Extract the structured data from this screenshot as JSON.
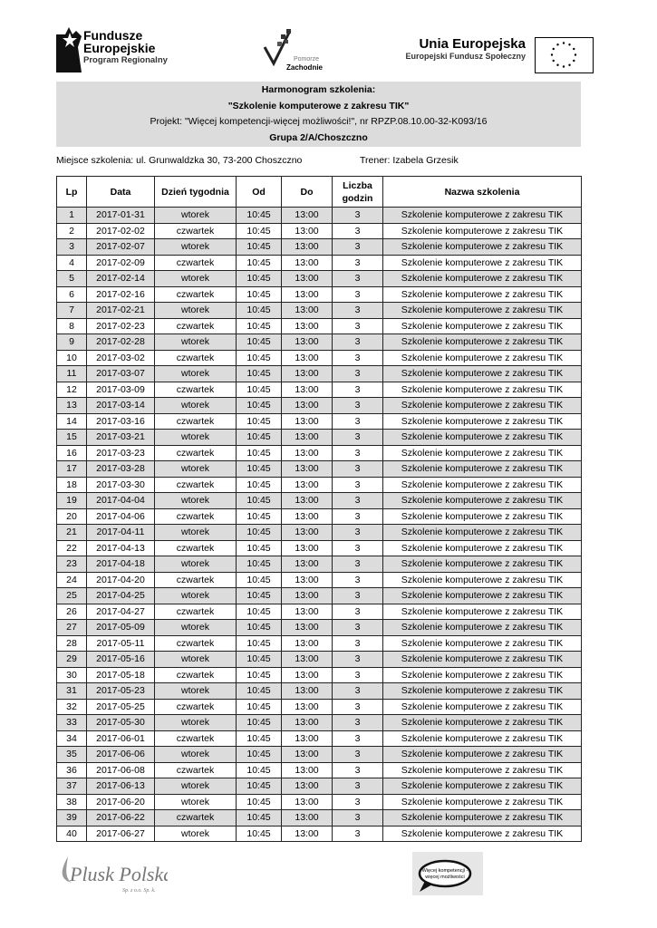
{
  "logos": {
    "fundusze": {
      "line1": "Fundusze",
      "line2": "Europejskie",
      "line3": "Program Regionalny"
    },
    "pomorze": {
      "line1": "Pomorze",
      "line2": "Zachodnie"
    },
    "ue": {
      "line1": "Unia Europejska",
      "line2": "Europejski Fundusz Społeczny"
    },
    "plusk": {
      "line1": "Plusk Polska",
      "line2": "Sp. z o.o. Sp. k."
    },
    "wiecej": {
      "line1": "Więcej kompetencji -",
      "line2": "więcej możliwości"
    }
  },
  "header": {
    "title": "Harmonogram szkolenia:",
    "course": "\"Szkolenie komputerowe z zakresu TIK\"",
    "project": "Projekt: \"Więcej kompetencji-więcej możliwości!\", nr RPZP.08.10.00-32-K093/16",
    "group": "Grupa 2/A/Choszczno"
  },
  "info": {
    "place": "Miejsce szkolenia: ul. Grunwaldzka 30, 73-200 Choszczno",
    "trainer": "Trener: Izabela Grzesik"
  },
  "table": {
    "columns": [
      "Lp",
      "Data",
      "Dzień tygodnia",
      "Od",
      "Do",
      "Liczba godzin",
      "Nazwa szkolenia"
    ],
    "rows": [
      [
        "1",
        "2017-01-31",
        "wtorek",
        "10:45",
        "13:00",
        "3",
        "Szkolenie komputerowe z zakresu TIK"
      ],
      [
        "2",
        "2017-02-02",
        "czwartek",
        "10:45",
        "13:00",
        "3",
        "Szkolenie komputerowe z zakresu TIK"
      ],
      [
        "3",
        "2017-02-07",
        "wtorek",
        "10:45",
        "13:00",
        "3",
        "Szkolenie komputerowe z zakresu TIK"
      ],
      [
        "4",
        "2017-02-09",
        "czwartek",
        "10:45",
        "13:00",
        "3",
        "Szkolenie komputerowe z zakresu TIK"
      ],
      [
        "5",
        "2017-02-14",
        "wtorek",
        "10:45",
        "13:00",
        "3",
        "Szkolenie komputerowe z zakresu TIK"
      ],
      [
        "6",
        "2017-02-16",
        "czwartek",
        "10:45",
        "13:00",
        "3",
        "Szkolenie komputerowe z zakresu TIK"
      ],
      [
        "7",
        "2017-02-21",
        "wtorek",
        "10:45",
        "13:00",
        "3",
        "Szkolenie komputerowe z zakresu TIK"
      ],
      [
        "8",
        "2017-02-23",
        "czwartek",
        "10:45",
        "13:00",
        "3",
        "Szkolenie komputerowe z zakresu TIK"
      ],
      [
        "9",
        "2017-02-28",
        "wtorek",
        "10:45",
        "13:00",
        "3",
        "Szkolenie komputerowe z zakresu TIK"
      ],
      [
        "10",
        "2017-03-02",
        "czwartek",
        "10:45",
        "13:00",
        "3",
        "Szkolenie komputerowe z zakresu TIK"
      ],
      [
        "11",
        "2017-03-07",
        "wtorek",
        "10:45",
        "13:00",
        "3",
        "Szkolenie komputerowe z zakresu TIK"
      ],
      [
        "12",
        "2017-03-09",
        "czwartek",
        "10:45",
        "13:00",
        "3",
        "Szkolenie komputerowe z zakresu TIK"
      ],
      [
        "13",
        "2017-03-14",
        "wtorek",
        "10:45",
        "13:00",
        "3",
        "Szkolenie komputerowe z zakresu TIK"
      ],
      [
        "14",
        "2017-03-16",
        "czwartek",
        "10:45",
        "13:00",
        "3",
        "Szkolenie komputerowe z zakresu TIK"
      ],
      [
        "15",
        "2017-03-21",
        "wtorek",
        "10:45",
        "13:00",
        "3",
        "Szkolenie komputerowe z zakresu TIK"
      ],
      [
        "16",
        "2017-03-23",
        "czwartek",
        "10:45",
        "13:00",
        "3",
        "Szkolenie komputerowe z zakresu TIK"
      ],
      [
        "17",
        "2017-03-28",
        "wtorek",
        "10:45",
        "13:00",
        "3",
        "Szkolenie komputerowe z zakresu TIK"
      ],
      [
        "18",
        "2017-03-30",
        "czwartek",
        "10:45",
        "13:00",
        "3",
        "Szkolenie komputerowe z zakresu TIK"
      ],
      [
        "19",
        "2017-04-04",
        "wtorek",
        "10:45",
        "13:00",
        "3",
        "Szkolenie komputerowe z zakresu TIK"
      ],
      [
        "20",
        "2017-04-06",
        "czwartek",
        "10:45",
        "13:00",
        "3",
        "Szkolenie komputerowe z zakresu TIK"
      ],
      [
        "21",
        "2017-04-11",
        "wtorek",
        "10:45",
        "13:00",
        "3",
        "Szkolenie komputerowe z zakresu TIK"
      ],
      [
        "22",
        "2017-04-13",
        "czwartek",
        "10:45",
        "13:00",
        "3",
        "Szkolenie komputerowe z zakresu TIK"
      ],
      [
        "23",
        "2017-04-18",
        "wtorek",
        "10:45",
        "13:00",
        "3",
        "Szkolenie komputerowe z zakresu TIK"
      ],
      [
        "24",
        "2017-04-20",
        "czwartek",
        "10:45",
        "13:00",
        "3",
        "Szkolenie komputerowe z zakresu TIK"
      ],
      [
        "25",
        "2017-04-25",
        "wtorek",
        "10:45",
        "13:00",
        "3",
        "Szkolenie komputerowe z zakresu TIK"
      ],
      [
        "26",
        "2017-04-27",
        "czwartek",
        "10:45",
        "13:00",
        "3",
        "Szkolenie komputerowe z zakresu TIK"
      ],
      [
        "27",
        "2017-05-09",
        "wtorek",
        "10:45",
        "13:00",
        "3",
        "Szkolenie komputerowe z zakresu TIK"
      ],
      [
        "28",
        "2017-05-11",
        "czwartek",
        "10:45",
        "13:00",
        "3",
        "Szkolenie komputerowe z zakresu TIK"
      ],
      [
        "29",
        "2017-05-16",
        "wtorek",
        "10:45",
        "13:00",
        "3",
        "Szkolenie komputerowe z zakresu TIK"
      ],
      [
        "30",
        "2017-05-18",
        "czwartek",
        "10:45",
        "13:00",
        "3",
        "Szkolenie komputerowe z zakresu TIK"
      ],
      [
        "31",
        "2017-05-23",
        "wtorek",
        "10:45",
        "13:00",
        "3",
        "Szkolenie komputerowe z zakresu TIK"
      ],
      [
        "32",
        "2017-05-25",
        "czwartek",
        "10:45",
        "13:00",
        "3",
        "Szkolenie komputerowe z zakresu TIK"
      ],
      [
        "33",
        "2017-05-30",
        "wtorek",
        "10:45",
        "13:00",
        "3",
        "Szkolenie komputerowe z zakresu TIK"
      ],
      [
        "34",
        "2017-06-01",
        "czwartek",
        "10:45",
        "13:00",
        "3",
        "Szkolenie komputerowe z zakresu TIK"
      ],
      [
        "35",
        "2017-06-06",
        "wtorek",
        "10:45",
        "13:00",
        "3",
        "Szkolenie komputerowe z zakresu TIK"
      ],
      [
        "36",
        "2017-06-08",
        "czwartek",
        "10:45",
        "13:00",
        "3",
        "Szkolenie komputerowe z zakresu TIK"
      ],
      [
        "37",
        "2017-06-13",
        "wtorek",
        "10:45",
        "13:00",
        "3",
        "Szkolenie komputerowe z zakresu TIK"
      ],
      [
        "38",
        "2017-06-20",
        "wtorek",
        "10:45",
        "13:00",
        "3",
        "Szkolenie komputerowe z zakresu TIK"
      ],
      [
        "39",
        "2017-06-22",
        "czwartek",
        "10:45",
        "13:00",
        "3",
        "Szkolenie komputerowe z zakresu TIK"
      ],
      [
        "40",
        "2017-06-27",
        "wtorek",
        "10:45",
        "13:00",
        "3",
        "Szkolenie komputerowe z zakresu TIK"
      ]
    ]
  },
  "colors": {
    "header_bg": "#dcdcdc",
    "odd_row_bg": "#dcdcdc"
  }
}
